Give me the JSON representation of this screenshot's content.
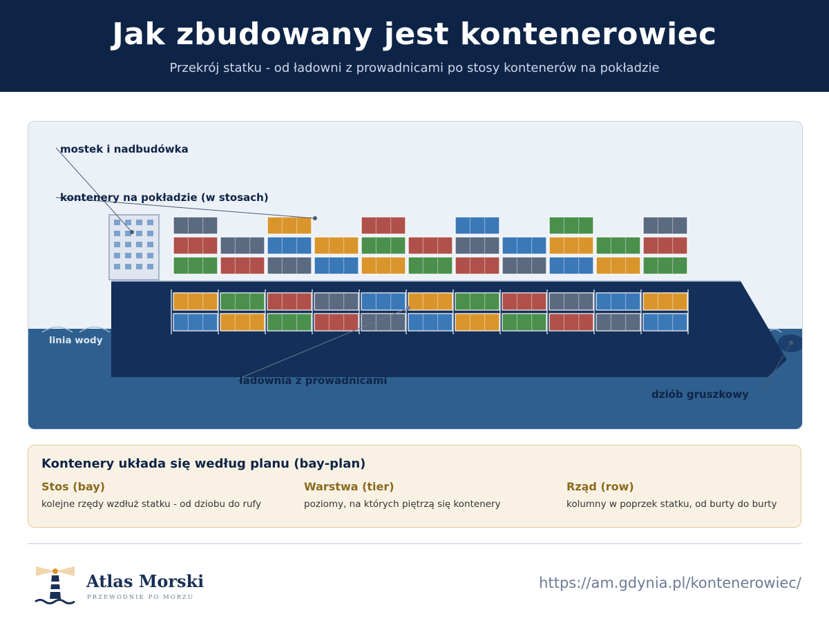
{
  "header": {
    "title": "Jak zbudowany jest kontenerowiec",
    "subtitle": "Przekrój statku - od ładowni z prowadnicami po stosy kontenerów na pokładzie"
  },
  "diagram": {
    "labels": {
      "bridge": "mostek i nadbudówka",
      "deck_containers": "kontenery na pokładzie (w stosach)",
      "waterline": "linia wody",
      "hold": "ładownia z prowadnicami",
      "bulbous_bow": "dziób gruszkowy"
    },
    "colors": {
      "hull": "#14305a",
      "water": "#2f5f8e",
      "sky": "#ecf1f8",
      "superstructure": "#dfe6f0",
      "window": "#7ea2cb"
    },
    "container_colors": {
      "grey": "#5a6a80",
      "red": "#b0504a",
      "green": "#4a8f4c",
      "blue": "#3a78b8",
      "orange": "#d9952c"
    },
    "deck_stacks": [
      [
        "green",
        "red",
        "grey"
      ],
      [
        "red",
        "grey"
      ],
      [
        "grey",
        "blue",
        "orange"
      ],
      [
        "blue",
        "orange"
      ],
      [
        "orange",
        "green",
        "red"
      ],
      [
        "green",
        "red"
      ],
      [
        "red",
        "grey",
        "blue"
      ],
      [
        "grey",
        "blue"
      ],
      [
        "blue",
        "orange",
        "green"
      ],
      [
        "orange",
        "green"
      ],
      [
        "green",
        "red",
        "grey"
      ]
    ],
    "hold_stacks": [
      [
        "orange",
        "blue"
      ],
      [
        "green",
        "orange"
      ],
      [
        "red",
        "green"
      ],
      [
        "grey",
        "red"
      ],
      [
        "blue",
        "grey"
      ],
      [
        "orange",
        "blue"
      ],
      [
        "green",
        "orange"
      ],
      [
        "red",
        "green"
      ],
      [
        "grey",
        "red"
      ],
      [
        "blue",
        "grey"
      ],
      [
        "orange",
        "blue"
      ]
    ]
  },
  "plan": {
    "title": "Kontenery układa się według planu (bay-plan)",
    "columns": [
      {
        "title": "Stos (bay)",
        "desc": "kolejne rzędy wzdłuż statku - od dziobu do rufy"
      },
      {
        "title": "Warstwa (tier)",
        "desc": "poziomy, na których piętrzą się kontenery"
      },
      {
        "title": "Rząd (row)",
        "desc": "kolumny w poprzek statku, od burty do burty"
      }
    ]
  },
  "footer": {
    "brand": "Atlas Morski",
    "tagline": "PRZEWODNIK PO MORZU",
    "url": "https://am.gdynia.pl/kontenerowiec/"
  }
}
